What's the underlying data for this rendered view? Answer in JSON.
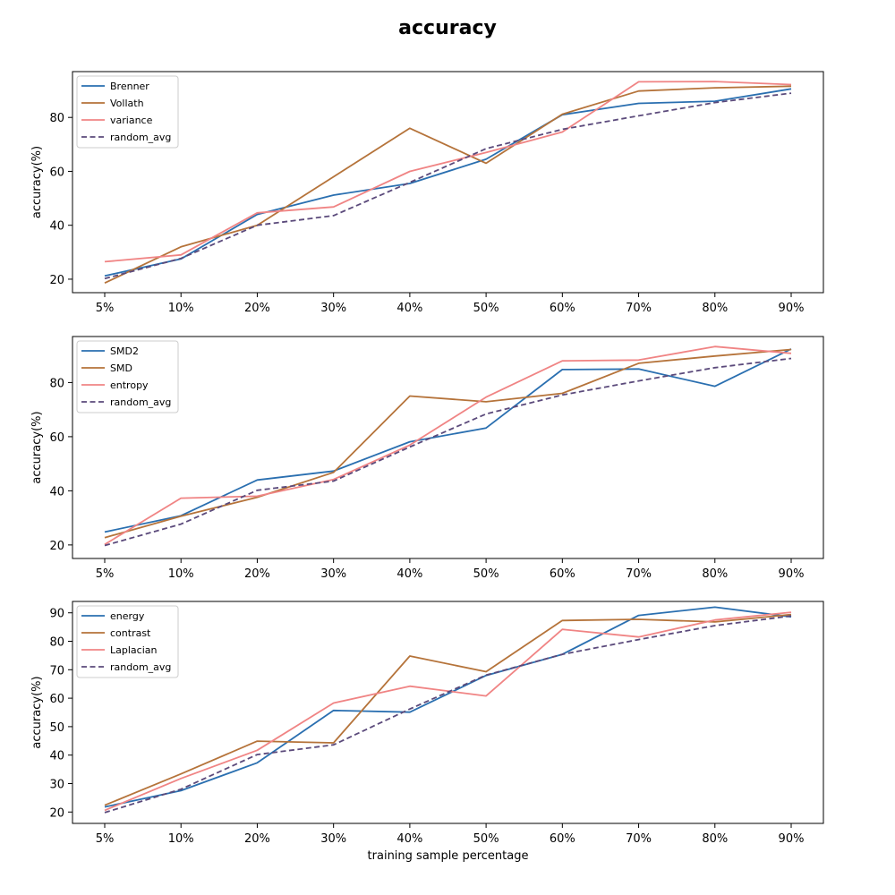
{
  "figure_title": "accuracy",
  "colors": {
    "blue": "#2a6fb0",
    "brown": "#b5733a",
    "pink": "#f08484",
    "purple": "#5b4a7b"
  },
  "chart_data": [
    {
      "type": "line",
      "categories": [
        "5%",
        "10%",
        "20%",
        "30%",
        "40%",
        "50%",
        "60%",
        "70%",
        "80%",
        "90%"
      ],
      "xlabel": "",
      "ylabel": "accuracy(%)",
      "ylim": [
        15,
        97
      ],
      "yticks": [
        20,
        40,
        60,
        80
      ],
      "legend": "top-left",
      "series": [
        {
          "name": "Brenner",
          "color": "#2a6fb0",
          "dashed": false,
          "values": [
            21.2,
            27.5,
            44.0,
            51.2,
            55.5,
            64.5,
            81.0,
            85.2,
            86.0,
            90.6
          ]
        },
        {
          "name": "Vollath",
          "color": "#b5733a",
          "dashed": false,
          "values": [
            18.6,
            32.0,
            40.0,
            58.0,
            76.0,
            63.0,
            81.2,
            89.8,
            91.0,
            91.6
          ]
        },
        {
          "name": "variance",
          "color": "#f08484",
          "dashed": false,
          "values": [
            26.5,
            29.0,
            44.6,
            46.8,
            60.0,
            67.0,
            74.6,
            93.2,
            93.3,
            92.2
          ]
        },
        {
          "name": "random_avg",
          "color": "#5b4a7b",
          "dashed": true,
          "values": [
            20.2,
            27.7,
            40.0,
            43.6,
            55.9,
            68.4,
            75.6,
            80.6,
            85.5,
            89.0
          ]
        }
      ]
    },
    {
      "type": "line",
      "categories": [
        "5%",
        "10%",
        "20%",
        "30%",
        "40%",
        "50%",
        "60%",
        "70%",
        "80%",
        "90%"
      ],
      "xlabel": "",
      "ylabel": "accuracy(%)",
      "ylim": [
        15,
        97
      ],
      "yticks": [
        20,
        40,
        60,
        80
      ],
      "legend": "top-left",
      "series": [
        {
          "name": "SMD2",
          "color": "#2a6fb0",
          "dashed": false,
          "values": [
            24.8,
            30.8,
            44.0,
            47.3,
            58.1,
            63.2,
            84.8,
            85.0,
            78.6,
            92.4
          ]
        },
        {
          "name": "SMD",
          "color": "#b5733a",
          "dashed": false,
          "values": [
            22.7,
            30.6,
            37.6,
            46.8,
            75.0,
            72.9,
            76.0,
            87.1,
            89.8,
            92.2
          ]
        },
        {
          "name": "entropy",
          "color": "#f08484",
          "dashed": false,
          "values": [
            20.2,
            37.3,
            38.0,
            44.2,
            56.9,
            74.6,
            88.0,
            88.3,
            93.3,
            90.8
          ]
        },
        {
          "name": "random_avg",
          "color": "#5b4a7b",
          "dashed": true,
          "values": [
            19.8,
            27.7,
            40.2,
            43.6,
            56.2,
            68.4,
            75.4,
            80.6,
            85.5,
            88.9
          ]
        }
      ]
    },
    {
      "type": "line",
      "categories": [
        "5%",
        "10%",
        "20%",
        "30%",
        "40%",
        "50%",
        "60%",
        "70%",
        "80%",
        "90%"
      ],
      "xlabel": "training sample percentage",
      "ylabel": "accuracy(%)",
      "ylim": [
        16,
        94
      ],
      "yticks": [
        20,
        30,
        40,
        50,
        60,
        70,
        80,
        90
      ],
      "legend": "top-left",
      "series": [
        {
          "name": "energy",
          "color": "#2a6fb0",
          "dashed": false,
          "values": [
            21.8,
            27.5,
            37.3,
            55.7,
            55.1,
            68.0,
            75.4,
            89.1,
            92.0,
            88.6
          ]
        },
        {
          "name": "contrast",
          "color": "#b5733a",
          "dashed": false,
          "values": [
            22.4,
            33.4,
            44.9,
            44.3,
            74.8,
            69.3,
            87.3,
            87.7,
            86.8,
            89.4
          ]
        },
        {
          "name": "Laplacian",
          "color": "#f08484",
          "dashed": false,
          "values": [
            20.6,
            31.8,
            41.7,
            58.3,
            64.2,
            60.8,
            84.2,
            81.5,
            87.5,
            90.2
          ]
        },
        {
          "name": "random_avg",
          "color": "#5b4a7b",
          "dashed": true,
          "values": [
            19.8,
            28.0,
            40.2,
            43.6,
            56.2,
            68.1,
            75.4,
            80.6,
            85.5,
            88.9
          ]
        }
      ]
    }
  ]
}
